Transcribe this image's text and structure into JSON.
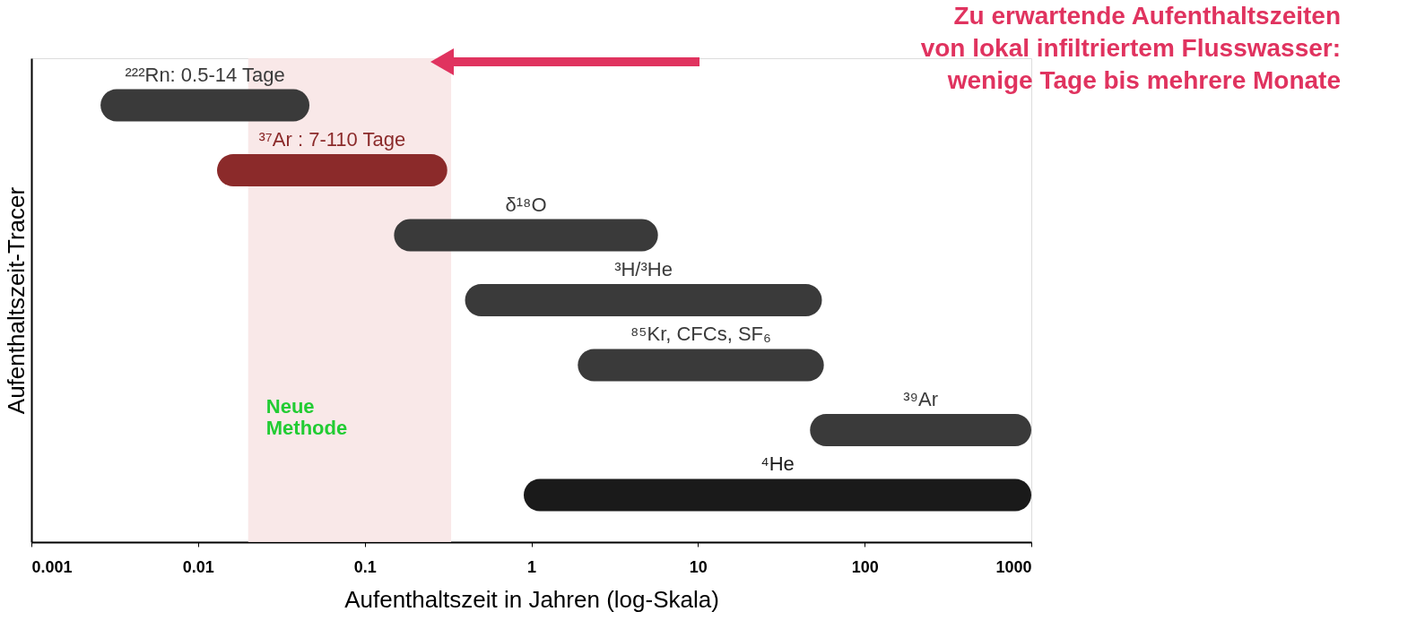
{
  "chart_data": {
    "type": "bar",
    "orientation": "horizontal",
    "log": "x",
    "xlabel": "Aufenthaltszeit in Jahren (log-Skala)",
    "ylabel": "Aufenthaltszeit-Tracer",
    "categories": [
      "²²²Rn: 0.5-14 Tage",
      "³⁷Ar : 7-110 Tage",
      "δ¹⁸O",
      "³H/³He",
      "⁸⁵Kr, CFCs, SF₆",
      "³⁹Ar",
      "⁴He"
    ],
    "base": [
      0.0026,
      0.013,
      0.15,
      0.4,
      1.9,
      47,
      0.9
    ],
    "values": [
      0.044,
      0.3,
      5.6,
      55,
      55,
      953,
      999.1
    ],
    "colors": [
      "#3a3a3a",
      "#8b2a2a",
      "#3a3a3a",
      "#3a3a3a",
      "#3a3a3a",
      "#3a3a3a",
      "#1a1a1a"
    ],
    "xlim": [
      0.001,
      1000
    ],
    "xticks": [
      0.001,
      0.01,
      0.1,
      1,
      10,
      100,
      1000
    ],
    "tick_labels": "x",
    "grid": false,
    "bands": [
      {
        "axis": "x",
        "from": 0.02,
        "to": 0.33,
        "label": "Neue Methode",
        "color": "#f8e6e6"
      }
    ],
    "annotations": [
      "Zu erwartende Aufenthaltszeiten\nvon lokal infiltriertem Flusswasser:\nwenige Tage bis mehrere Monate"
    ]
  }
}
